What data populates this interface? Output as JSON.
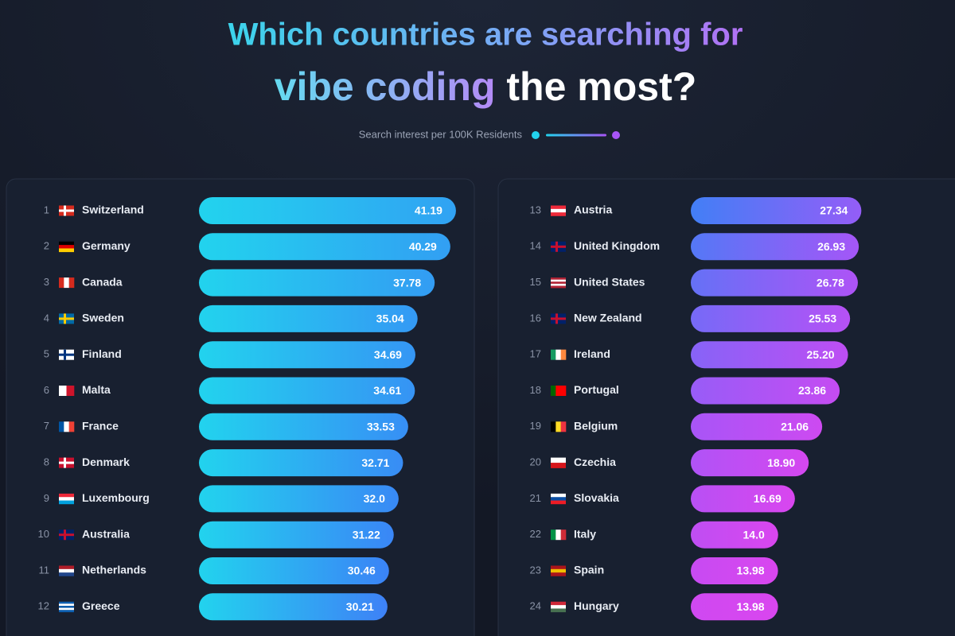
{
  "title": [
    "Which countries are searching for",
    "vibe coding",
    "the most?"
  ],
  "subtitle": "Search interest per 100K Residents",
  "colors": [
    "#22d3ee",
    "#3b82f6",
    "#a855f7",
    "#d946ef"
  ],
  "chart_data": [
    {
      "type": "bar",
      "orientation": "horizontal",
      "ranks": [
        1,
        2,
        3,
        4,
        5,
        6,
        7,
        8,
        9,
        10,
        11,
        12
      ],
      "categories": [
        "Switzerland",
        "Germany",
        "Canada",
        "Sweden",
        "Finland",
        "Malta",
        "France",
        "Denmark",
        "Luxembourg",
        "Australia",
        "Netherlands",
        "Greece"
      ],
      "values": [
        41.19,
        40.29,
        37.78,
        35.04,
        34.69,
        34.61,
        33.53,
        32.71,
        32.0,
        31.22,
        30.46,
        30.21
      ],
      "value_labels": [
        "41.19",
        "40.29",
        "37.78",
        "35.04",
        "34.69",
        "34.61",
        "33.53",
        "32.71",
        "32.0",
        "31.22",
        "30.46",
        "30.21"
      ]
    },
    {
      "type": "bar",
      "orientation": "horizontal",
      "ranks": [
        13,
        14,
        15,
        16,
        17,
        18,
        19,
        20,
        21,
        22,
        23,
        24
      ],
      "categories": [
        "Austria",
        "United Kingdom",
        "United States",
        "New Zealand",
        "Ireland",
        "Portugal",
        "Belgium",
        "Czechia",
        "Slovakia",
        "Italy",
        "Spain",
        "Hungary"
      ],
      "values": [
        27.34,
        26.93,
        26.78,
        25.53,
        25.2,
        23.86,
        21.06,
        18.9,
        16.69,
        14.0,
        13.98,
        13.98
      ],
      "value_labels": [
        "27.34",
        "26.93",
        "26.78",
        "25.53",
        "25.20",
        "23.86",
        "21.06",
        "18.90",
        "16.69",
        "14.0",
        "13.98",
        "13.98"
      ]
    }
  ]
}
